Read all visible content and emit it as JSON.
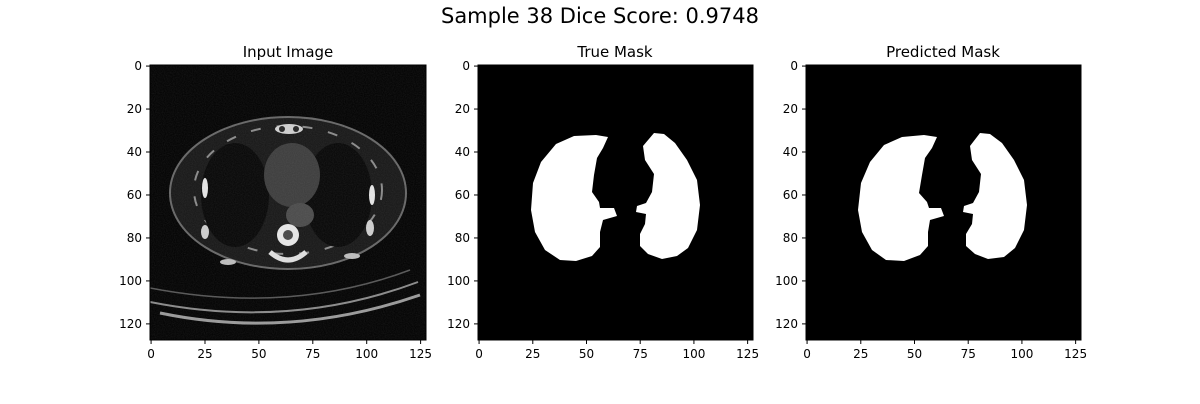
{
  "figure": {
    "suptitle": "Sample 38 Dice Score: 0.9748"
  },
  "panels": [
    {
      "title": "Input Image",
      "kind": "ct-slice",
      "xticks": [
        "0",
        "25",
        "50",
        "75",
        "100",
        "125"
      ],
      "yticks": [
        "0",
        "20",
        "40",
        "60",
        "80",
        "100",
        "120"
      ]
    },
    {
      "title": "True Mask",
      "kind": "binary-mask",
      "xticks": [
        "0",
        "25",
        "50",
        "75",
        "100",
        "125"
      ],
      "yticks": [
        "0",
        "20",
        "40",
        "60",
        "80",
        "100",
        "120"
      ]
    },
    {
      "title": "Predicted Mask",
      "kind": "binary-mask",
      "xticks": [
        "0",
        "25",
        "50",
        "75",
        "100",
        "125"
      ],
      "yticks": [
        "0",
        "20",
        "40",
        "60",
        "80",
        "100",
        "120"
      ]
    }
  ],
  "colors": {
    "background": "#000000",
    "foreground": "#ffffff",
    "axis": "#000000"
  }
}
